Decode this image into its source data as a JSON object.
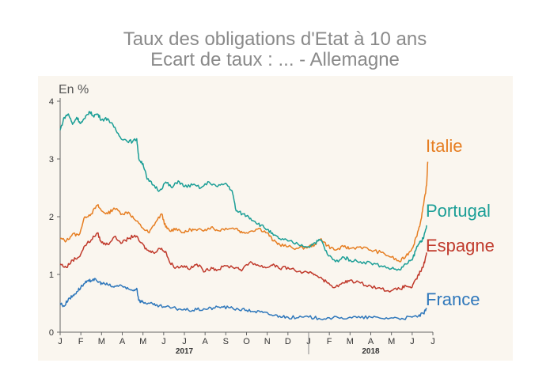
{
  "chart_data": {
    "type": "line",
    "title": "Taux des obligations d'Etat à 10 ans",
    "subtitle": "Ecart de taux : ... - Allemagne",
    "ylabel": "En %",
    "ylim": [
      0,
      4
    ],
    "yticks": [
      "0",
      "1",
      "2",
      "3",
      "4"
    ],
    "xlim": [
      0,
      18
    ],
    "xticks": [
      "J",
      "F",
      "M",
      "A",
      "M",
      "J",
      "J",
      "A",
      "S",
      "O",
      "N",
      "D",
      "J",
      "F",
      "M",
      "A",
      "M",
      "J",
      "J"
    ],
    "years": [
      {
        "label": "2017",
        "at": 6.0
      },
      {
        "label": "2018",
        "at": 15.0
      }
    ],
    "year_divider": 12,
    "grid": false,
    "background": "#faf6ef",
    "series": [
      {
        "name": "Italie",
        "color": "#e67e22",
        "points": [
          [
            0,
            1.62
          ],
          [
            0.3,
            1.58
          ],
          [
            0.6,
            1.7
          ],
          [
            0.9,
            1.68
          ],
          [
            1.2,
            2.0
          ],
          [
            1.5,
            2.05
          ],
          [
            1.8,
            2.2
          ],
          [
            2.0,
            2.1
          ],
          [
            2.3,
            2.05
          ],
          [
            2.6,
            2.15
          ],
          [
            3.0,
            2.05
          ],
          [
            3.3,
            2.08
          ],
          [
            3.6,
            1.95
          ],
          [
            4.0,
            1.8
          ],
          [
            4.3,
            1.72
          ],
          [
            4.6,
            1.9
          ],
          [
            4.9,
            2.05
          ],
          [
            5.1,
            1.82
          ],
          [
            5.3,
            1.75
          ],
          [
            5.6,
            1.8
          ],
          [
            6.0,
            1.72
          ],
          [
            6.3,
            1.78
          ],
          [
            6.6,
            1.76
          ],
          [
            7.0,
            1.78
          ],
          [
            7.3,
            1.82
          ],
          [
            7.6,
            1.76
          ],
          [
            8.0,
            1.8
          ],
          [
            8.5,
            1.8
          ],
          [
            8.8,
            1.72
          ],
          [
            9.2,
            1.75
          ],
          [
            9.6,
            1.8
          ],
          [
            10.0,
            1.72
          ],
          [
            10.3,
            1.58
          ],
          [
            10.6,
            1.52
          ],
          [
            11.0,
            1.48
          ],
          [
            11.5,
            1.45
          ],
          [
            12.0,
            1.48
          ],
          [
            12.3,
            1.52
          ],
          [
            12.6,
            1.62
          ],
          [
            12.9,
            1.5
          ],
          [
            13.3,
            1.42
          ],
          [
            13.7,
            1.48
          ],
          [
            14.0,
            1.45
          ],
          [
            14.5,
            1.48
          ],
          [
            15.0,
            1.42
          ],
          [
            15.5,
            1.38
          ],
          [
            16.0,
            1.3
          ],
          [
            16.4,
            1.22
          ],
          [
            16.7,
            1.32
          ],
          [
            17.0,
            1.45
          ],
          [
            17.2,
            1.65
          ],
          [
            17.4,
            1.9
          ],
          [
            17.55,
            2.2
          ],
          [
            17.7,
            2.55
          ],
          [
            17.75,
            2.95
          ]
        ]
      },
      {
        "name": "Portugal",
        "color": "#1a9e96",
        "points": [
          [
            0,
            3.5
          ],
          [
            0.2,
            3.72
          ],
          [
            0.4,
            3.78
          ],
          [
            0.6,
            3.6
          ],
          [
            0.8,
            3.72
          ],
          [
            1.0,
            3.62
          ],
          [
            1.2,
            3.7
          ],
          [
            1.4,
            3.82
          ],
          [
            1.6,
            3.75
          ],
          [
            1.8,
            3.78
          ],
          [
            2.0,
            3.68
          ],
          [
            2.3,
            3.7
          ],
          [
            2.6,
            3.55
          ],
          [
            2.9,
            3.38
          ],
          [
            3.2,
            3.32
          ],
          [
            3.5,
            3.3
          ],
          [
            3.7,
            3.35
          ],
          [
            3.8,
            3.0
          ],
          [
            4.0,
            2.92
          ],
          [
            4.2,
            2.65
          ],
          [
            4.5,
            2.55
          ],
          [
            4.8,
            2.45
          ],
          [
            5.1,
            2.6
          ],
          [
            5.4,
            2.5
          ],
          [
            5.7,
            2.62
          ],
          [
            6.0,
            2.52
          ],
          [
            6.4,
            2.55
          ],
          [
            6.8,
            2.5
          ],
          [
            7.2,
            2.6
          ],
          [
            7.6,
            2.52
          ],
          [
            8.0,
            2.58
          ],
          [
            8.3,
            2.45
          ],
          [
            8.5,
            2.1
          ],
          [
            8.8,
            2.05
          ],
          [
            9.1,
            2.0
          ],
          [
            9.4,
            1.92
          ],
          [
            9.7,
            1.85
          ],
          [
            10.0,
            1.78
          ],
          [
            10.3,
            1.68
          ],
          [
            10.6,
            1.62
          ],
          [
            11.0,
            1.58
          ],
          [
            11.5,
            1.52
          ],
          [
            12.0,
            1.48
          ],
          [
            12.3,
            1.55
          ],
          [
            12.6,
            1.6
          ],
          [
            12.9,
            1.35
          ],
          [
            13.3,
            1.22
          ],
          [
            13.7,
            1.3
          ],
          [
            14.0,
            1.25
          ],
          [
            14.5,
            1.22
          ],
          [
            15.0,
            1.2
          ],
          [
            15.5,
            1.15
          ],
          [
            16.0,
            1.1
          ],
          [
            16.4,
            1.08
          ],
          [
            16.7,
            1.18
          ],
          [
            17.0,
            1.25
          ],
          [
            17.2,
            1.45
          ],
          [
            17.4,
            1.58
          ],
          [
            17.55,
            1.62
          ],
          [
            17.7,
            1.85
          ]
        ]
      },
      {
        "name": "Espagne",
        "color": "#c0392b",
        "points": [
          [
            0,
            1.18
          ],
          [
            0.3,
            1.12
          ],
          [
            0.6,
            1.25
          ],
          [
            0.9,
            1.3
          ],
          [
            1.2,
            1.5
          ],
          [
            1.5,
            1.6
          ],
          [
            1.8,
            1.72
          ],
          [
            2.0,
            1.55
          ],
          [
            2.3,
            1.52
          ],
          [
            2.6,
            1.65
          ],
          [
            3.0,
            1.55
          ],
          [
            3.3,
            1.62
          ],
          [
            3.6,
            1.68
          ],
          [
            3.9,
            1.55
          ],
          [
            4.2,
            1.42
          ],
          [
            4.5,
            1.38
          ],
          [
            4.8,
            1.45
          ],
          [
            5.1,
            1.4
          ],
          [
            5.3,
            1.2
          ],
          [
            5.6,
            1.12
          ],
          [
            6.0,
            1.15
          ],
          [
            6.3,
            1.1
          ],
          [
            6.6,
            1.18
          ],
          [
            7.0,
            1.05
          ],
          [
            7.3,
            1.12
          ],
          [
            7.6,
            1.08
          ],
          [
            8.0,
            1.15
          ],
          [
            8.5,
            1.12
          ],
          [
            8.8,
            1.08
          ],
          [
            9.2,
            1.22
          ],
          [
            9.6,
            1.15
          ],
          [
            10.0,
            1.12
          ],
          [
            10.3,
            1.18
          ],
          [
            10.6,
            1.1
          ],
          [
            11.0,
            1.12
          ],
          [
            11.5,
            1.05
          ],
          [
            12.0,
            1.02
          ],
          [
            12.3,
            1.0
          ],
          [
            12.6,
            0.95
          ],
          [
            12.9,
            0.85
          ],
          [
            13.3,
            0.78
          ],
          [
            13.7,
            0.85
          ],
          [
            14.0,
            0.9
          ],
          [
            14.5,
            0.85
          ],
          [
            15.0,
            0.8
          ],
          [
            15.5,
            0.75
          ],
          [
            16.0,
            0.72
          ],
          [
            16.4,
            0.75
          ],
          [
            16.7,
            0.8
          ],
          [
            17.0,
            0.78
          ],
          [
            17.2,
            0.92
          ],
          [
            17.4,
            1.05
          ],
          [
            17.55,
            1.15
          ],
          [
            17.7,
            1.38
          ]
        ]
      },
      {
        "name": "France",
        "color": "#2e77bb",
        "points": [
          [
            0,
            0.5
          ],
          [
            0.2,
            0.45
          ],
          [
            0.4,
            0.58
          ],
          [
            0.6,
            0.62
          ],
          [
            0.8,
            0.7
          ],
          [
            1.0,
            0.78
          ],
          [
            1.2,
            0.85
          ],
          [
            1.4,
            0.88
          ],
          [
            1.6,
            0.92
          ],
          [
            1.8,
            0.88
          ],
          [
            2.0,
            0.85
          ],
          [
            2.3,
            0.82
          ],
          [
            2.6,
            0.78
          ],
          [
            2.9,
            0.82
          ],
          [
            3.2,
            0.75
          ],
          [
            3.5,
            0.72
          ],
          [
            3.7,
            0.76
          ],
          [
            3.8,
            0.55
          ],
          [
            4.0,
            0.52
          ],
          [
            4.3,
            0.5
          ],
          [
            4.6,
            0.46
          ],
          [
            5.0,
            0.44
          ],
          [
            5.4,
            0.42
          ],
          [
            5.8,
            0.4
          ],
          [
            6.2,
            0.38
          ],
          [
            6.6,
            0.39
          ],
          [
            7.0,
            0.4
          ],
          [
            7.4,
            0.42
          ],
          [
            7.8,
            0.44
          ],
          [
            8.2,
            0.42
          ],
          [
            8.6,
            0.4
          ],
          [
            9.0,
            0.38
          ],
          [
            9.4,
            0.36
          ],
          [
            9.8,
            0.34
          ],
          [
            10.2,
            0.3
          ],
          [
            10.6,
            0.28
          ],
          [
            11.0,
            0.26
          ],
          [
            11.5,
            0.25
          ],
          [
            12.0,
            0.26
          ],
          [
            12.5,
            0.24
          ],
          [
            13.0,
            0.25
          ],
          [
            13.5,
            0.24
          ],
          [
            14.0,
            0.26
          ],
          [
            14.5,
            0.25
          ],
          [
            15.0,
            0.26
          ],
          [
            15.5,
            0.24
          ],
          [
            16.0,
            0.25
          ],
          [
            16.5,
            0.24
          ],
          [
            17.0,
            0.26
          ],
          [
            17.3,
            0.28
          ],
          [
            17.55,
            0.32
          ],
          [
            17.7,
            0.4
          ]
        ]
      }
    ]
  }
}
